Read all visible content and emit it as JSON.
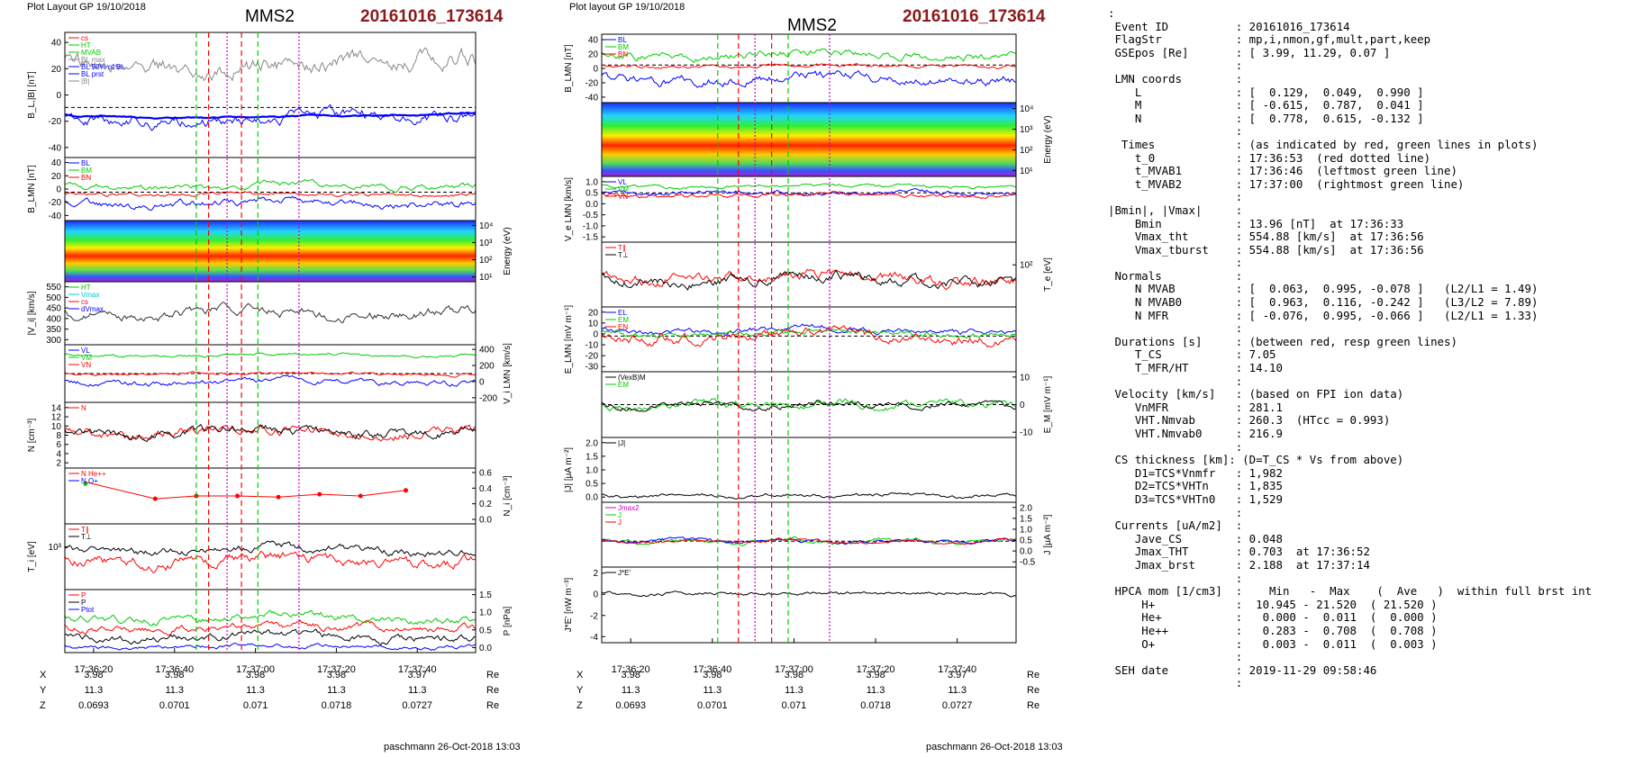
{
  "left": {
    "header": "Plot Layout GP 19/10/2018",
    "title": "MMS2",
    "event": "20161016_173614",
    "footer": "paschmann 26-Oct-2018 13:03",
    "time_ticks": [
      "17:36:20",
      "17:36:40",
      "17:37:00",
      "17:37:20",
      "17:37:40"
    ],
    "ephem": {
      "rows": [
        {
          "label": "X",
          "values": [
            "3.98",
            "3.98",
            "3.98",
            "3.98",
            "3.97"
          ],
          "unit": "Re"
        },
        {
          "label": "Y",
          "values": [
            "11.3",
            "11.3",
            "11.3",
            "11.3",
            "11.3"
          ],
          "unit": "Re"
        },
        {
          "label": "Z",
          "values": [
            "0.0693",
            "0.0701",
            "0.071",
            "0.0718",
            "0.0727"
          ],
          "unit": "Re"
        }
      ]
    },
    "panels": [
      {
        "ylabel": "B_L,|B| [nT]",
        "ticks": [
          "40",
          "20",
          "0",
          "-20",
          "-40"
        ],
        "legend": [
          "cs",
          "HT",
          "MVAB",
          "BL max",
          "BL 50% of BL",
          "BL prst",
          "|B|"
        ]
      },
      {
        "ylabel": "B_LMN [nT]",
        "ticks": [
          "40",
          "20",
          "0",
          "-20",
          "-40"
        ],
        "legend": [
          "BL",
          "BM",
          "BN"
        ]
      },
      {
        "ylabel": "Energy (eV)",
        "ticks": [
          "10⁴",
          "10³",
          "10²",
          "10¹"
        ],
        "legend": []
      },
      {
        "ylabel": "|V_i| [km/s]",
        "ticks": [
          "550",
          "500",
          "450",
          "400",
          "350",
          "300"
        ],
        "legend": [
          "HT",
          "Vmax",
          "cs",
          "dVmax"
        ]
      },
      {
        "ylabel": "V_i LMN [km/s]",
        "ticks": [
          "400",
          "200",
          "0",
          "-200"
        ],
        "legend": [
          "VL",
          "VM",
          "VN"
        ]
      },
      {
        "ylabel": "N [cm⁻³]",
        "ticks": [
          "14",
          "12",
          "10",
          "8",
          "6",
          "4",
          "2"
        ],
        "legend": [
          "N"
        ]
      },
      {
        "ylabel": "N_i [cm⁻³]",
        "ticks": [
          "0.6",
          "0.4",
          "0.2",
          "0.0"
        ],
        "legend": [
          "N He++",
          "N O+"
        ]
      },
      {
        "ylabel": "T_i [eV]",
        "ticks": [
          "10³"
        ],
        "legend": [
          "T∥",
          "T⊥"
        ]
      },
      {
        "ylabel": "P [nPa]",
        "ticks": [
          "1.5",
          "1.0",
          "0.5",
          "0.0"
        ],
        "legend": [
          "P",
          "P",
          "Ptot"
        ]
      }
    ]
  },
  "middle": {
    "header": "Plot layout GP 19/10/2018",
    "title": "MMS2",
    "event": "20161016_173614",
    "footer": "paschmann 26-Oct-2018 13:03",
    "time_ticks": [
      "17:36:20",
      "17:36:40",
      "17:37:00",
      "17:37:20",
      "17:37:40"
    ],
    "ephem": {
      "rows": [
        {
          "label": "X",
          "values": [
            "3.98",
            "3.98",
            "3.98",
            "3.98",
            "3.97"
          ],
          "unit": "Re"
        },
        {
          "label": "Y",
          "values": [
            "11.3",
            "11.3",
            "11.3",
            "11.3",
            "11.3"
          ],
          "unit": "Re"
        },
        {
          "label": "Z",
          "values": [
            "0.0693",
            "0.0701",
            "0.071",
            "0.0718",
            "0.0727"
          ],
          "unit": "Re"
        }
      ]
    },
    "panels": [
      {
        "ylabel": "B_LMN [nT]",
        "ticks": [
          "40",
          "20",
          "0",
          "-20",
          "-40"
        ],
        "legend": [
          "BL",
          "BM",
          "BN"
        ]
      },
      {
        "ylabel": "Energy (eV)",
        "ticks": [
          "10⁴",
          "10³",
          "10²",
          "10¹"
        ],
        "legend": []
      },
      {
        "ylabel": "V_e LMN [km/s]",
        "ticks": [
          "1.0",
          "0.5",
          "0.0",
          "-0.5",
          "-1.0",
          "-1.5"
        ],
        "legend": [
          "VL",
          "VM",
          "VN"
        ]
      },
      {
        "ylabel": "T_e [eV]",
        "ticks": [
          "10²"
        ],
        "legend": [
          "T∥",
          "T⊥"
        ]
      },
      {
        "ylabel": "E_LMN [mV m⁻¹]",
        "ticks": [
          "20",
          "10",
          "0",
          "-10",
          "-20",
          "-30"
        ],
        "legend": [
          "EL",
          "EM",
          "EN"
        ]
      },
      {
        "ylabel": "E_M [mV m⁻¹]",
        "ticks": [
          "10",
          "0",
          "-10"
        ],
        "legend": [
          "(VexB)M",
          "EM"
        ]
      },
      {
        "ylabel": "|J| [μA m⁻²]",
        "ticks": [
          "2.0",
          "1.5",
          "1.0",
          "0.5",
          "0.0"
        ],
        "legend": [
          "|J|"
        ]
      },
      {
        "ylabel": "J [μA m⁻²]",
        "ticks": [
          "2.0",
          "1.5",
          "1.0",
          "0.5",
          "0.0",
          "-0.5"
        ],
        "legend": [
          "Jmax2",
          "J",
          "J"
        ]
      },
      {
        "ylabel": "J*E' [nW m⁻³]",
        "ticks": [
          "2",
          "0",
          "-2",
          "-4"
        ],
        "legend": [
          "J*E'"
        ]
      }
    ]
  },
  "info": {
    "rows": [
      ":",
      " Event ID          : 20161016_173614",
      " FlagStr           : mp,i,nmon,gf,mult,part,keep",
      " GSEpos [Re]       : [ 3.99, 11.29, 0.07 ]",
      "                   :",
      " LMN coords        :",
      "    L              : [  0.129,  0.049,  0.990 ]",
      "    M              : [ -0.615,  0.787,  0.041 ]",
      "    N              : [  0.778,  0.615, -0.132 ]",
      "                   :",
      "  Times            : (as indicated by red, green lines in plots)",
      "    t_0            : 17:36:53  (red dotted line)",
      "    t_MVAB1        : 17:36:46  (leftmost green line)",
      "    t_MVAB2        : 17:37:00  (rightmost green line)",
      "                   :",
      "|Bmin|, |Vmax|     :",
      "    Bmin           : 13.96 [nT]  at 17:36:33",
      "    Vmax_tht       : 554.88 [km/s]  at 17:36:56",
      "    Vmax_tburst    : 554.88 [km/s]  at 17:36:56",
      "                   :",
      " Normals           :",
      "    N MVAB         : [  0.063,  0.995, -0.078 ]   (L2/L1 = 1.49)",
      "    N MVAB0        : [  0.963,  0.116, -0.242 ]   (L3/L2 = 7.89)",
      "    N MFR          : [ -0.076,  0.995, -0.066 ]   (L2/L1 = 1.33)",
      "                   :",
      " Durations [s]     : (between red, resp green lines)",
      "    T_CS           : 7.05",
      "    T_MFR/HT       : 14.10",
      "                   :",
      " Velocity [km/s]   : (based on FPI ion data)",
      "    VnMFR          : 281.1",
      "    VHT.Nmvab      : 260.3  (HTcc = 0.993)",
      "    VHT.Nmvab0     : 216.9",
      "                   :",
      " CS thickness [km]: (D=T_CS * Vs from above)",
      "    D1=TCS*Vnmfr   : 1,982",
      "    D2=TCS*VHTn    : 1,835",
      "    D3=TCS*VHTn0   : 1,529",
      "                   :",
      " Currents [uA/m2]  :",
      "    Jave_CS        : 0.048",
      "    Jmax_THT       : 0.703  at 17:36:52",
      "    Jmax_brst      : 2.188  at 17:37:14",
      "                   :",
      " HPCA mom [1/cm3]  :    Min   -  Max    (  Ave   )  within full brst int",
      "     H+            :  10.945 - 21.520  ( 21.520 )",
      "     He+           :   0.000 -  0.011  (  0.000 )",
      "     He++          :   0.283 -  0.708  (  0.708 )",
      "     O+            :   0.003 -  0.011  (  0.003 )",
      "                   :",
      " SEH date          : 2019-11-29 09:58:46",
      "                   :"
    ]
  },
  "colors": {
    "event": "#8b1a1a",
    "red": "#ff0000",
    "green": "#00cc00",
    "blue": "#0000ff",
    "magenta": "#cc00cc",
    "gray": "#888888"
  }
}
